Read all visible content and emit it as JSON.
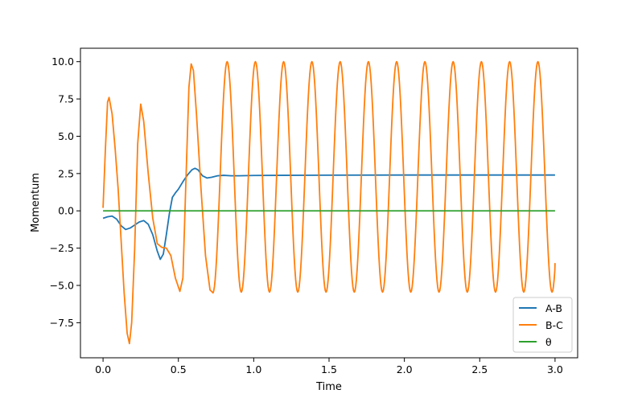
{
  "chart_data": {
    "type": "line",
    "title": "",
    "xlabel": "Time",
    "ylabel": "Momentum",
    "xlim": [
      -0.15,
      3.15
    ],
    "ylim": [
      -9.85,
      10.9
    ],
    "xticks": [
      0.0,
      0.5,
      1.0,
      1.5,
      2.0,
      2.5,
      3.0
    ],
    "xtick_labels": [
      "0.0",
      "0.5",
      "1.0",
      "1.5",
      "2.0",
      "2.5",
      "3.0"
    ],
    "yticks": [
      -7.5,
      -5.0,
      -2.5,
      0.0,
      2.5,
      5.0,
      7.5,
      10.0
    ],
    "ytick_labels": [
      "−7.5",
      "−5.0",
      "−2.5",
      "0.0",
      "2.5",
      "5.0",
      "7.5",
      "10.0"
    ],
    "grid": false,
    "legend_position": "bottom-right",
    "series": [
      {
        "name": "A-B",
        "color": "#1f77b4",
        "points": [
          [
            0.0,
            -0.5
          ],
          [
            0.03,
            -0.4
          ],
          [
            0.06,
            -0.35
          ],
          [
            0.09,
            -0.55
          ],
          [
            0.12,
            -1.0
          ],
          [
            0.15,
            -1.25
          ],
          [
            0.18,
            -1.15
          ],
          [
            0.21,
            -0.95
          ],
          [
            0.24,
            -0.75
          ],
          [
            0.27,
            -0.65
          ],
          [
            0.3,
            -0.9
          ],
          [
            0.33,
            -1.6
          ],
          [
            0.36,
            -2.7
          ],
          [
            0.38,
            -3.25
          ],
          [
            0.4,
            -2.9
          ],
          [
            0.42,
            -1.6
          ],
          [
            0.44,
            -0.2
          ],
          [
            0.46,
            0.9
          ],
          [
            0.48,
            1.2
          ],
          [
            0.5,
            1.45
          ],
          [
            0.53,
            1.95
          ],
          [
            0.56,
            2.4
          ],
          [
            0.59,
            2.75
          ],
          [
            0.61,
            2.85
          ],
          [
            0.63,
            2.75
          ],
          [
            0.66,
            2.35
          ],
          [
            0.69,
            2.2
          ],
          [
            0.72,
            2.25
          ],
          [
            0.76,
            2.35
          ],
          [
            0.8,
            2.38
          ],
          [
            0.85,
            2.35
          ],
          [
            0.9,
            2.35
          ],
          [
            1.0,
            2.37
          ],
          [
            1.2,
            2.38
          ],
          [
            1.5,
            2.39
          ],
          [
            2.0,
            2.4
          ],
          [
            2.5,
            2.4
          ],
          [
            3.0,
            2.4
          ]
        ]
      },
      {
        "name": "B-C",
        "color": "#ff7f0e",
        "points": [
          [
            0.0,
            0.2
          ],
          [
            0.015,
            4.0
          ],
          [
            0.03,
            7.3
          ],
          [
            0.04,
            7.6
          ],
          [
            0.06,
            6.5
          ],
          [
            0.08,
            4.2
          ],
          [
            0.1,
            1.5
          ],
          [
            0.12,
            -2.0
          ],
          [
            0.14,
            -5.5
          ],
          [
            0.16,
            -8.2
          ],
          [
            0.175,
            -8.9
          ],
          [
            0.19,
            -7.5
          ],
          [
            0.21,
            -2.5
          ],
          [
            0.23,
            4.5
          ],
          [
            0.25,
            7.15
          ],
          [
            0.27,
            6.0
          ],
          [
            0.3,
            2.5
          ],
          [
            0.33,
            -0.5
          ],
          [
            0.36,
            -2.2
          ],
          [
            0.39,
            -2.45
          ],
          [
            0.42,
            -2.5
          ],
          [
            0.45,
            -3.0
          ],
          [
            0.48,
            -4.5
          ],
          [
            0.51,
            -5.4
          ],
          [
            0.53,
            -4.5
          ],
          [
            0.55,
            2.0
          ],
          [
            0.57,
            8.3
          ],
          [
            0.585,
            9.85
          ],
          [
            0.6,
            9.4
          ],
          [
            0.62,
            6.5
          ],
          [
            0.65,
            1.5
          ],
          [
            0.68,
            -3.0
          ],
          [
            0.71,
            -5.3
          ],
          [
            0.73,
            -5.5
          ]
        ],
        "cycles": {
          "start": 0.73,
          "period": 0.1875,
          "count": 12,
          "peak": 10.0,
          "trough": -5.45,
          "end": [
            3.0,
            -3.5
          ]
        }
      },
      {
        "name": "θ",
        "color": "#2ca02c",
        "points": [
          [
            0.0,
            0.0
          ],
          [
            3.0,
            0.0
          ]
        ]
      }
    ]
  }
}
